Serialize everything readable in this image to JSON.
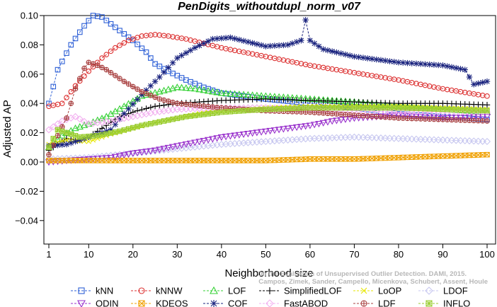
{
  "chart_data": {
    "type": "line",
    "title": "PenDigits_withoutdupl_norm_v07",
    "xlabel": "Neighborhood size",
    "ylabel": "Adjusted AP",
    "xlim": [
      1,
      100
    ],
    "ylim": [
      -0.05,
      0.1
    ],
    "xticks": [
      "1",
      "10",
      "20",
      "30",
      "40",
      "50",
      "60",
      "70",
      "80",
      "90",
      "100"
    ],
    "yticks": [
      "−0.04",
      "−0.02",
      "0.00",
      "0.02",
      "0.04",
      "0.06",
      "0.08",
      "0.10"
    ],
    "grid": false,
    "legend_position": "bottom",
    "credit_lines": [
      "Campos, Zimek, Sander, Campello, Micenkova, Schubert, Assent, Houle",
      "On the Evaluation of Unsupervised Outlier Detection. DAMI, 2015."
    ],
    "series": [
      {
        "name": "kNN",
        "color": "#2d5fd6",
        "marker": "square",
        "knots": [
          [
            1,
            0.04
          ],
          [
            3,
            0.063
          ],
          [
            6,
            0.08
          ],
          [
            9,
            0.093
          ],
          [
            11,
            0.1
          ],
          [
            13,
            0.099
          ],
          [
            16,
            0.092
          ],
          [
            20,
            0.083
          ],
          [
            23,
            0.075
          ],
          [
            25,
            0.067
          ],
          [
            28,
            0.062
          ],
          [
            32,
            0.056
          ],
          [
            36,
            0.051
          ],
          [
            40,
            0.047
          ],
          [
            45,
            0.045
          ],
          [
            50,
            0.043
          ],
          [
            60,
            0.04
          ],
          [
            70,
            0.037
          ],
          [
            80,
            0.033
          ],
          [
            90,
            0.031
          ],
          [
            100,
            0.029
          ]
        ]
      },
      {
        "name": "kNNW",
        "color": "#dc3232",
        "marker": "circle",
        "knots": [
          [
            1,
            0.038
          ],
          [
            4,
            0.04
          ],
          [
            7,
            0.052
          ],
          [
            10,
            0.062
          ],
          [
            13,
            0.071
          ],
          [
            16,
            0.078
          ],
          [
            19,
            0.083
          ],
          [
            22,
            0.086
          ],
          [
            25,
            0.087
          ],
          [
            28,
            0.086
          ],
          [
            32,
            0.084
          ],
          [
            36,
            0.081
          ],
          [
            40,
            0.078
          ],
          [
            45,
            0.075
          ],
          [
            50,
            0.072
          ],
          [
            60,
            0.066
          ],
          [
            70,
            0.061
          ],
          [
            80,
            0.056
          ],
          [
            90,
            0.05
          ],
          [
            100,
            0.045
          ]
        ]
      },
      {
        "name": "LOF",
        "color": "#36d136",
        "marker": "triangle",
        "knots": [
          [
            1,
            0.01
          ],
          [
            4,
            0.018
          ],
          [
            7,
            0.023
          ],
          [
            10,
            0.026
          ],
          [
            14,
            0.031
          ],
          [
            18,
            0.038
          ],
          [
            22,
            0.045
          ],
          [
            26,
            0.048
          ],
          [
            30,
            0.051
          ],
          [
            34,
            0.05
          ],
          [
            40,
            0.047
          ],
          [
            50,
            0.045
          ],
          [
            60,
            0.043
          ],
          [
            70,
            0.041
          ],
          [
            80,
            0.038
          ],
          [
            90,
            0.036
          ],
          [
            100,
            0.034
          ]
        ]
      },
      {
        "name": "SimplifiedLOF",
        "color": "#000000",
        "marker": "plus",
        "knots": [
          [
            1,
            0.008
          ],
          [
            3,
            0.012
          ],
          [
            5,
            0.016
          ],
          [
            8,
            0.015
          ],
          [
            10,
            0.017
          ],
          [
            13,
            0.023
          ],
          [
            17,
            0.031
          ],
          [
            21,
            0.035
          ],
          [
            25,
            0.038
          ],
          [
            30,
            0.04
          ],
          [
            35,
            0.041
          ],
          [
            40,
            0.042
          ],
          [
            50,
            0.043
          ],
          [
            60,
            0.042
          ],
          [
            70,
            0.041
          ],
          [
            80,
            0.04
          ],
          [
            90,
            0.04
          ],
          [
            100,
            0.039
          ]
        ]
      },
      {
        "name": "LoOP",
        "color": "#e6e600",
        "marker": "cross",
        "knots": [
          [
            1,
            0.012
          ],
          [
            5,
            0.015
          ],
          [
            10,
            0.014
          ],
          [
            15,
            0.019
          ],
          [
            20,
            0.023
          ],
          [
            25,
            0.027
          ],
          [
            30,
            0.03
          ],
          [
            35,
            0.033
          ],
          [
            40,
            0.035
          ],
          [
            50,
            0.037
          ],
          [
            60,
            0.038
          ],
          [
            70,
            0.038
          ],
          [
            80,
            0.038
          ],
          [
            90,
            0.037
          ],
          [
            100,
            0.036
          ]
        ]
      },
      {
        "name": "LDOF",
        "color": "#c8c8f0",
        "marker": "diamond",
        "knots": [
          [
            1,
            0.002
          ],
          [
            10,
            0.003
          ],
          [
            20,
            0.006
          ],
          [
            30,
            0.009
          ],
          [
            40,
            0.012
          ],
          [
            50,
            0.014
          ],
          [
            60,
            0.016
          ],
          [
            70,
            0.017
          ],
          [
            80,
            0.016
          ],
          [
            90,
            0.015
          ],
          [
            100,
            0.014
          ]
        ]
      },
      {
        "name": "ODIN",
        "color": "#9932cc",
        "marker": "triangle-down",
        "knots": [
          [
            1,
            0.0
          ],
          [
            5,
            0.001
          ],
          [
            10,
            0.002
          ],
          [
            15,
            0.003
          ],
          [
            20,
            0.006
          ],
          [
            25,
            0.008
          ],
          [
            30,
            0.011
          ],
          [
            35,
            0.014
          ],
          [
            40,
            0.017
          ],
          [
            45,
            0.019
          ],
          [
            50,
            0.021
          ],
          [
            55,
            0.023
          ],
          [
            60,
            0.025
          ],
          [
            65,
            0.028
          ],
          [
            70,
            0.03
          ],
          [
            75,
            0.031
          ],
          [
            80,
            0.032
          ],
          [
            85,
            0.031
          ],
          [
            90,
            0.03
          ],
          [
            100,
            0.031
          ]
        ]
      },
      {
        "name": "KDEOS",
        "color": "#f0a000",
        "marker": "square-x",
        "knots": [
          [
            1,
            0.001
          ],
          [
            20,
            0.001
          ],
          [
            40,
            0.001
          ],
          [
            50,
            0.001
          ],
          [
            60,
            0.002
          ],
          [
            70,
            0.002
          ],
          [
            80,
            0.003
          ],
          [
            90,
            0.004
          ],
          [
            100,
            0.005
          ]
        ]
      },
      {
        "name": "COF",
        "color": "#1a237e",
        "marker": "asterisk",
        "knots": [
          [
            1,
            0.011
          ],
          [
            5,
            0.012
          ],
          [
            10,
            0.017
          ],
          [
            15,
            0.022
          ],
          [
            18,
            0.033
          ],
          [
            22,
            0.046
          ],
          [
            26,
            0.058
          ],
          [
            30,
            0.071
          ],
          [
            34,
            0.078
          ],
          [
            38,
            0.084
          ],
          [
            42,
            0.085
          ],
          [
            46,
            0.082
          ],
          [
            50,
            0.079
          ],
          [
            55,
            0.08
          ],
          [
            58,
            0.083
          ],
          [
            59,
            0.097
          ],
          [
            60,
            0.083
          ],
          [
            63,
            0.077
          ],
          [
            70,
            0.072
          ],
          [
            80,
            0.068
          ],
          [
            90,
            0.066
          ],
          [
            95,
            0.063
          ],
          [
            97,
            0.053
          ],
          [
            100,
            0.055
          ]
        ]
      },
      {
        "name": "FastABOD",
        "color": "#f2b0f0",
        "marker": "diamond",
        "knots": [
          [
            1,
            0.022
          ],
          [
            4,
            0.028
          ],
          [
            7,
            0.031
          ],
          [
            10,
            0.026
          ],
          [
            15,
            0.028
          ],
          [
            20,
            0.031
          ],
          [
            25,
            0.034
          ],
          [
            30,
            0.036
          ],
          [
            40,
            0.037
          ],
          [
            50,
            0.037
          ],
          [
            60,
            0.036
          ],
          [
            70,
            0.035
          ],
          [
            80,
            0.034
          ],
          [
            90,
            0.034
          ],
          [
            100,
            0.034
          ]
        ]
      },
      {
        "name": "LDF",
        "color": "#a84040",
        "marker": "circle-plus",
        "knots": [
          [
            1,
            0.005
          ],
          [
            3,
            0.018
          ],
          [
            5,
            0.03
          ],
          [
            7,
            0.05
          ],
          [
            9,
            0.064
          ],
          [
            10,
            0.068
          ],
          [
            12,
            0.066
          ],
          [
            14,
            0.063
          ],
          [
            18,
            0.055
          ],
          [
            22,
            0.048
          ],
          [
            26,
            0.043
          ],
          [
            30,
            0.04
          ],
          [
            40,
            0.037
          ],
          [
            50,
            0.035
          ],
          [
            60,
            0.034
          ],
          [
            70,
            0.032
          ],
          [
            80,
            0.03
          ],
          [
            90,
            0.029
          ],
          [
            100,
            0.028
          ]
        ]
      },
      {
        "name": "INFLO",
        "color": "#9acd32",
        "marker": "star-box",
        "knots": [
          [
            1,
            0.01
          ],
          [
            3,
            0.022
          ],
          [
            5,
            0.02
          ],
          [
            8,
            0.017
          ],
          [
            12,
            0.018
          ],
          [
            17,
            0.021
          ],
          [
            22,
            0.025
          ],
          [
            27,
            0.028
          ],
          [
            32,
            0.031
          ],
          [
            40,
            0.034
          ],
          [
            50,
            0.036
          ],
          [
            60,
            0.037
          ],
          [
            70,
            0.037
          ],
          [
            80,
            0.037
          ],
          [
            90,
            0.036
          ],
          [
            100,
            0.035
          ]
        ]
      }
    ]
  }
}
